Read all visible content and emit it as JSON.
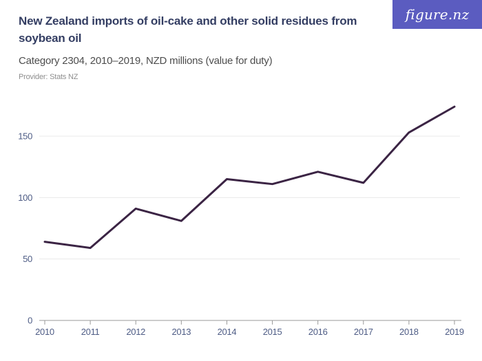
{
  "header": {
    "title": "New Zealand imports of oil-cake and other solid residues from soybean oil",
    "subtitle": "Category 2304, 2010–2019, NZD millions (value for duty)",
    "provider": "Provider: Stats NZ"
  },
  "logo": {
    "text": "figure.nz",
    "background_color": "#5b5cc0",
    "text_color": "#ffffff"
  },
  "chart_data": {
    "type": "line",
    "title": "New Zealand imports of oil-cake and other solid residues from soybean oil",
    "subtitle": "Category 2304, 2010–2019, NZD millions (value for duty)",
    "x": [
      2010,
      2011,
      2012,
      2013,
      2014,
      2015,
      2016,
      2017,
      2018,
      2019
    ],
    "series": [
      {
        "name": "NZD millions (value for duty)",
        "values": [
          64,
          59,
          91,
          81,
          115,
          111,
          121,
          112,
          153,
          174
        ]
      }
    ],
    "xlabel": "",
    "ylabel": "",
    "ylim": [
      0,
      180
    ],
    "yticks": [
      0,
      50,
      100,
      150
    ],
    "grid": true,
    "legend_position": "none",
    "colors": {
      "line": "#3b2444",
      "grid": "#e9e9e9",
      "axis": "#999999",
      "tick_label": "#4e5c85"
    }
  }
}
